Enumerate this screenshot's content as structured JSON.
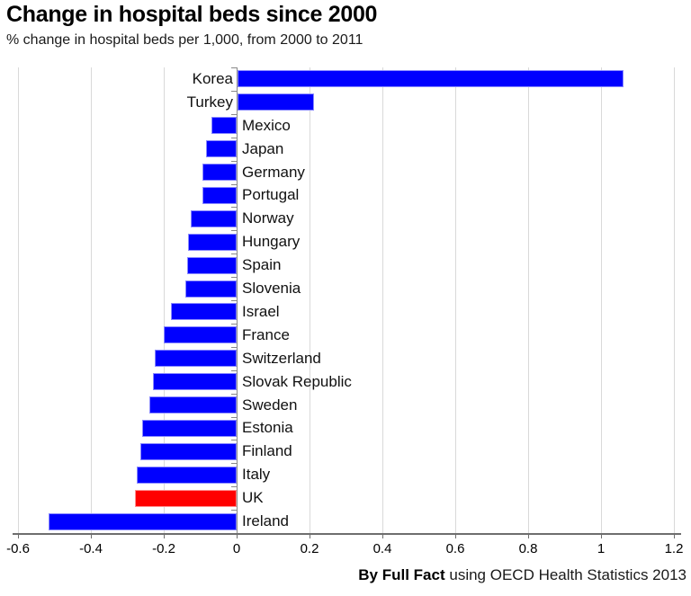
{
  "title": "Change in hospital beds since 2000",
  "subtitle": "% change in hospital beds per 1,000, from 2000 to 2011",
  "footer": {
    "bold": "By Full Fact",
    "regular": " using OECD Health Statistics 2013"
  },
  "chart_data": {
    "type": "bar",
    "orientation": "horizontal",
    "title": "Change in hospital beds since 2000",
    "subtitle": "% change in hospital beds per 1,000, from 2000 to 2011",
    "xlabel": "",
    "ylabel": "",
    "xlim": [
      -0.6,
      1.2
    ],
    "x_ticks": [
      -0.6,
      -0.4,
      -0.2,
      0,
      0.2,
      0.4,
      0.6,
      0.8,
      1,
      1.2
    ],
    "x_tick_labels": [
      "-0.6",
      "-0.4",
      "-0.2",
      "0",
      "0.2",
      "0.4",
      "0.6",
      "0.8",
      "1",
      "1.2"
    ],
    "grid": true,
    "legend": false,
    "categories": [
      "Korea",
      "Turkey",
      "Mexico",
      "Japan",
      "Germany",
      "Portugal",
      "Norway",
      "Hungary",
      "Spain",
      "Slovenia",
      "Israel",
      "France",
      "Switzerland",
      "Slovak Republic",
      "Sweden",
      "Estonia",
      "Finland",
      "Italy",
      "UK",
      "Ireland"
    ],
    "values": [
      1.06,
      0.21,
      -0.07,
      -0.085,
      -0.095,
      -0.095,
      -0.125,
      -0.133,
      -0.136,
      -0.14,
      -0.18,
      -0.2,
      -0.225,
      -0.23,
      -0.24,
      -0.26,
      -0.265,
      -0.275,
      -0.28,
      -0.515
    ],
    "bar_color": "#0000ff",
    "bar_border_color": "#8a8aff",
    "highlight_category": "UK",
    "highlight_color": "#ff0000",
    "highlight_border_color": "#ff9090",
    "source_note": "By Full Fact using OECD Health Statistics 2013"
  }
}
